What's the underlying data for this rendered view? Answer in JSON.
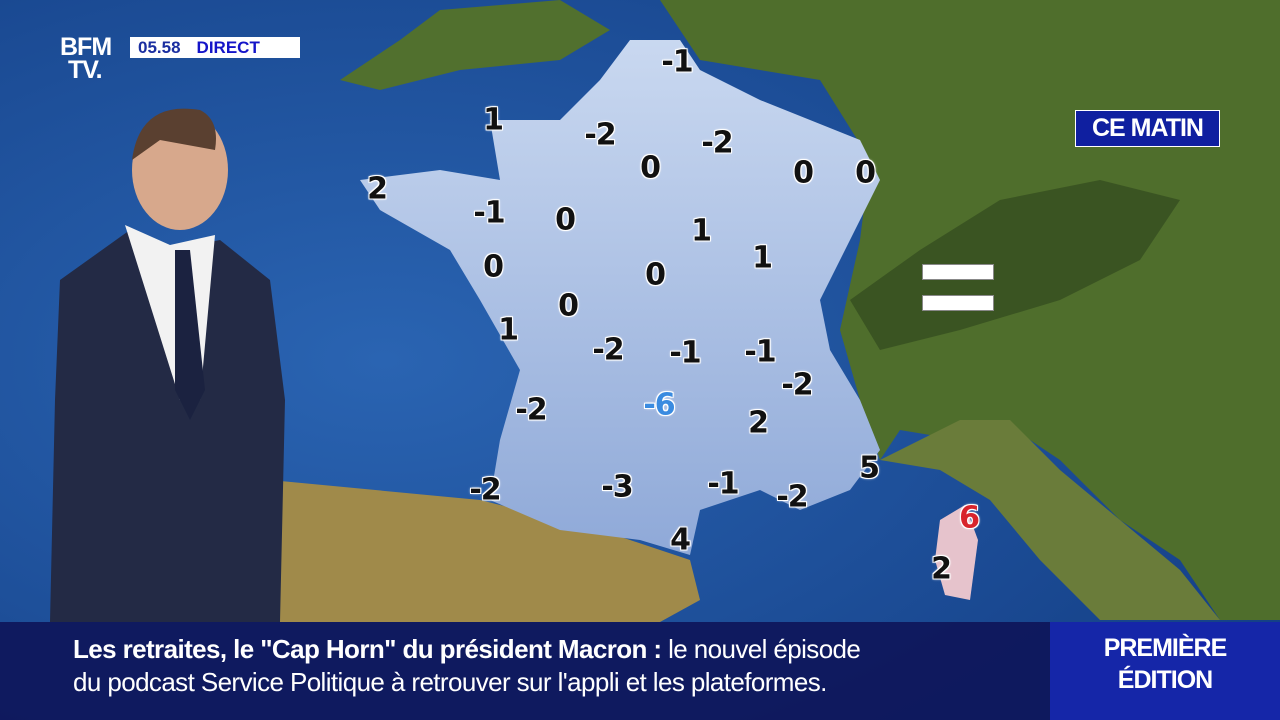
{
  "channel": {
    "logo": "BFM TV.",
    "logo_line1": "BFM",
    "logo_line2": "TV.",
    "time": "05.58",
    "live_label": "DIRECT"
  },
  "map": {
    "period_label": "CE MATIN",
    "sea_color": "#1d4f9a",
    "land_color": "#4f6e2c",
    "france_color": "#a9c0e6",
    "temperatures": [
      {
        "value": "-1"
      },
      {
        "value": "1"
      },
      {
        "value": "-2"
      },
      {
        "value": "-2"
      },
      {
        "value": "0"
      },
      {
        "value": "0"
      },
      {
        "value": "0"
      },
      {
        "value": "2"
      },
      {
        "value": "-1"
      },
      {
        "value": "0"
      },
      {
        "value": "1"
      },
      {
        "value": "1"
      },
      {
        "value": "0"
      },
      {
        "value": "0"
      },
      {
        "value": "0"
      },
      {
        "value": "1"
      },
      {
        "value": "-2"
      },
      {
        "value": "-1"
      },
      {
        "value": "-1"
      },
      {
        "value": "-2"
      },
      {
        "value": "-2"
      },
      {
        "value": "-6",
        "style": "cold"
      },
      {
        "value": "2"
      },
      {
        "value": "5"
      },
      {
        "value": "-2"
      },
      {
        "value": "-3"
      },
      {
        "value": "-1"
      },
      {
        "value": "-2"
      },
      {
        "value": "6",
        "style": "warm"
      },
      {
        "value": "4"
      },
      {
        "value": "2"
      }
    ],
    "legend_icon": "equal-sign-icon"
  },
  "ticker": {
    "headline": "Les retraites, le \"Cap Horn\" du président Macron",
    "separator": " : ",
    "line1_rest": "le nouvel épisode",
    "line2": "du podcast Service Politique à retrouver sur l'appli et les plateformes."
  },
  "show": {
    "line1": "PREMIÈRE",
    "line2": "ÉDITION"
  }
}
